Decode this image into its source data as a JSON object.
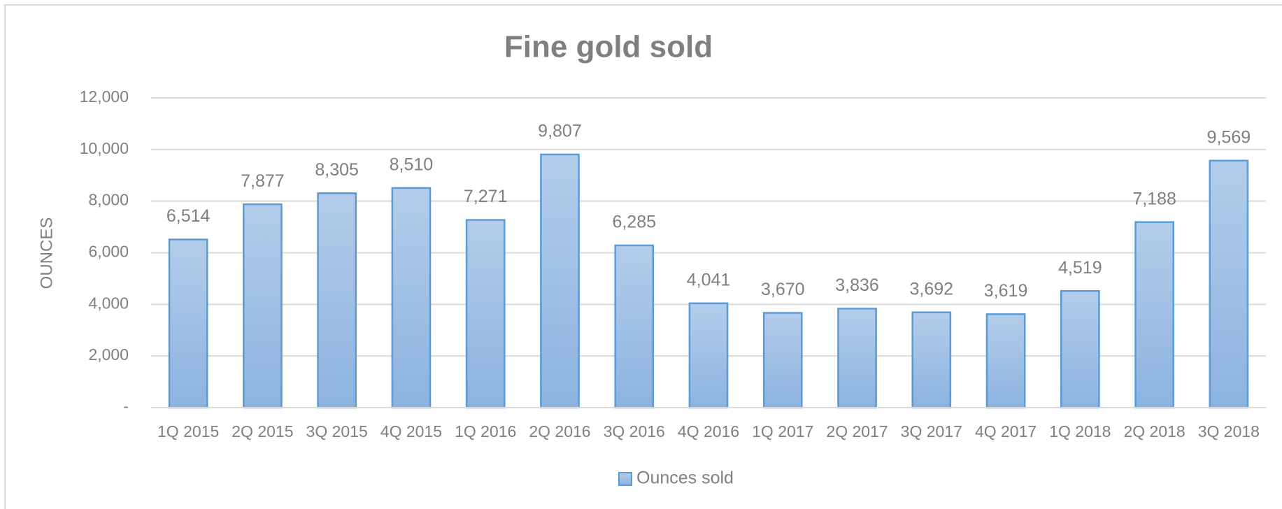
{
  "chart_data": {
    "type": "bar",
    "title": "Fine gold sold",
    "y_label": "OUNCES",
    "categories": [
      "1Q 2015",
      "2Q 2015",
      "3Q 2015",
      "4Q 2015",
      "1Q 2016",
      "2Q 2016",
      "3Q 2016",
      "4Q 2016",
      "1Q 2017",
      "2Q 2017",
      "3Q 2017",
      "4Q 2017",
      "1Q 2018",
      "2Q 2018",
      "3Q 2018"
    ],
    "series": [
      {
        "name": "Ounces sold",
        "color": "#5b9bd5",
        "values": [
          6514,
          7877,
          8305,
          8510,
          7271,
          9807,
          6285,
          4041,
          3670,
          3836,
          3692,
          3619,
          4519,
          7188,
          9569
        ],
        "value_labels": [
          "6,514",
          "7,877",
          "8,305",
          "8,510",
          "7,271",
          "9,807",
          "6,285",
          "4,041",
          "3,670",
          "3,836",
          "3,692",
          "3,619",
          "4,519",
          "7,188",
          "9,569"
        ]
      }
    ],
    "ylim": [
      0,
      12000
    ],
    "yticks": [
      {
        "value": 0,
        "label": "-"
      },
      {
        "value": 2000,
        "label": "2,000"
      },
      {
        "value": 4000,
        "label": "4,000"
      },
      {
        "value": 6000,
        "label": "6,000"
      },
      {
        "value": 8000,
        "label": "8,000"
      },
      {
        "value": 10000,
        "label": "10,000"
      },
      {
        "value": 12000,
        "label": "12,000"
      }
    ],
    "grid": true,
    "legend": "bottom"
  }
}
